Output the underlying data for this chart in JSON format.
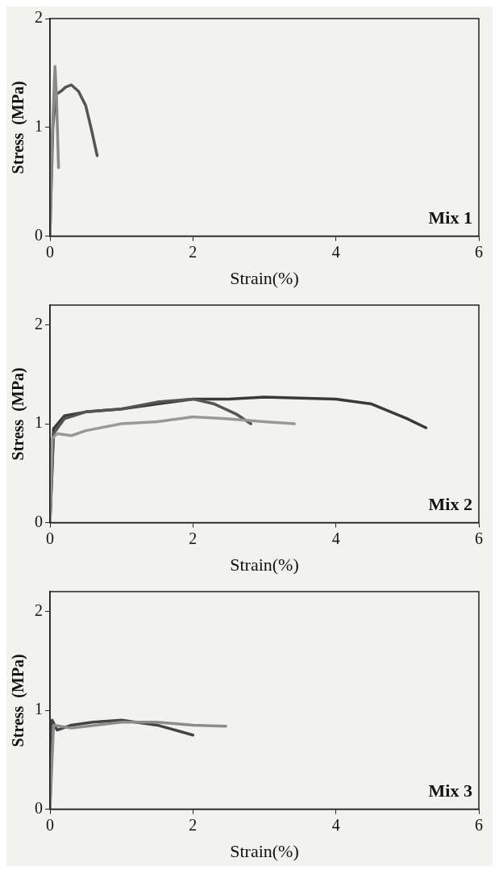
{
  "chart_data": [
    {
      "type": "line",
      "xlabel": "Strain(%)",
      "ylabel": "Stress  (MPa)",
      "annotations": [
        "Mix 1"
      ],
      "xlim": [
        0,
        6
      ],
      "ylim": [
        0,
        2
      ],
      "xticks": [
        0,
        2,
        4,
        6
      ],
      "yticks": [
        0,
        1,
        2
      ],
      "grid": false,
      "legend": false,
      "marker": "none",
      "line_style": "solid",
      "series": [
        {
          "color": "#8a8a8a",
          "x": [
            0,
            0.03,
            0.07,
            0.09,
            0.11,
            0.12
          ],
          "values": [
            0,
            0.9,
            1.56,
            1.3,
            0.85,
            0.63
          ]
        },
        {
          "color": "#555555",
          "x": [
            0,
            0.04,
            0.08,
            0.15,
            0.22,
            0.3,
            0.4,
            0.5,
            0.58,
            0.66
          ],
          "values": [
            0,
            1.0,
            1.3,
            1.33,
            1.37,
            1.39,
            1.33,
            1.2,
            0.98,
            0.74
          ]
        }
      ]
    },
    {
      "type": "line",
      "xlabel": "Strain(%)",
      "ylabel": "Stress  (MPa)",
      "annotations": [
        "Mix 2"
      ],
      "xlim": [
        0,
        6
      ],
      "ylim": [
        0,
        2.2
      ],
      "xticks": [
        0,
        2,
        4,
        6
      ],
      "yticks": [
        0,
        1,
        2
      ],
      "grid": false,
      "legend": false,
      "marker": "none",
      "line_style": "solid",
      "series": [
        {
          "color": "#999999",
          "x": [
            0,
            0.03,
            0.1,
            0.3,
            0.5,
            1,
            1.5,
            2,
            2.5,
            3,
            3.42
          ],
          "values": [
            0,
            0.85,
            0.9,
            0.88,
            0.93,
            1.0,
            1.02,
            1.07,
            1.05,
            1.02,
            1.0
          ]
        },
        {
          "color": "#555555",
          "x": [
            0,
            0.05,
            0.2,
            0.5,
            1,
            1.5,
            2,
            2.3,
            2.6,
            2.81
          ],
          "values": [
            0,
            0.9,
            1.05,
            1.12,
            1.15,
            1.22,
            1.25,
            1.2,
            1.1,
            1.0
          ]
        },
        {
          "color": "#3a3a3a",
          "x": [
            0,
            0.05,
            0.2,
            0.5,
            1,
            1.5,
            2,
            2.5,
            3,
            3.5,
            4,
            4.5,
            5,
            5.26
          ],
          "values": [
            0,
            0.95,
            1.08,
            1.12,
            1.15,
            1.2,
            1.25,
            1.25,
            1.27,
            1.26,
            1.25,
            1.2,
            1.05,
            0.96
          ]
        }
      ]
    },
    {
      "type": "line",
      "xlabel": "Strain(%)",
      "ylabel": "Stress  (MPa)",
      "annotations": [
        "Mix 3"
      ],
      "xlim": [
        0,
        6
      ],
      "ylim": [
        0,
        2.2
      ],
      "xticks": [
        0,
        2,
        4,
        6
      ],
      "yticks": [
        0,
        1,
        2
      ],
      "grid": false,
      "legend": false,
      "marker": "none",
      "line_style": "solid",
      "series": [
        {
          "color": "#8c8c8c",
          "x": [
            0,
            0.05,
            0.3,
            1,
            1.5,
            2,
            2.46
          ],
          "values": [
            0,
            0.85,
            0.82,
            0.88,
            0.88,
            0.85,
            0.84
          ]
        },
        {
          "color": "#444444",
          "x": [
            0,
            0.03,
            0.1,
            0.3,
            0.6,
            1,
            1.5,
            2
          ],
          "values": [
            0,
            0.9,
            0.8,
            0.85,
            0.88,
            0.9,
            0.85,
            0.75
          ]
        }
      ]
    }
  ]
}
